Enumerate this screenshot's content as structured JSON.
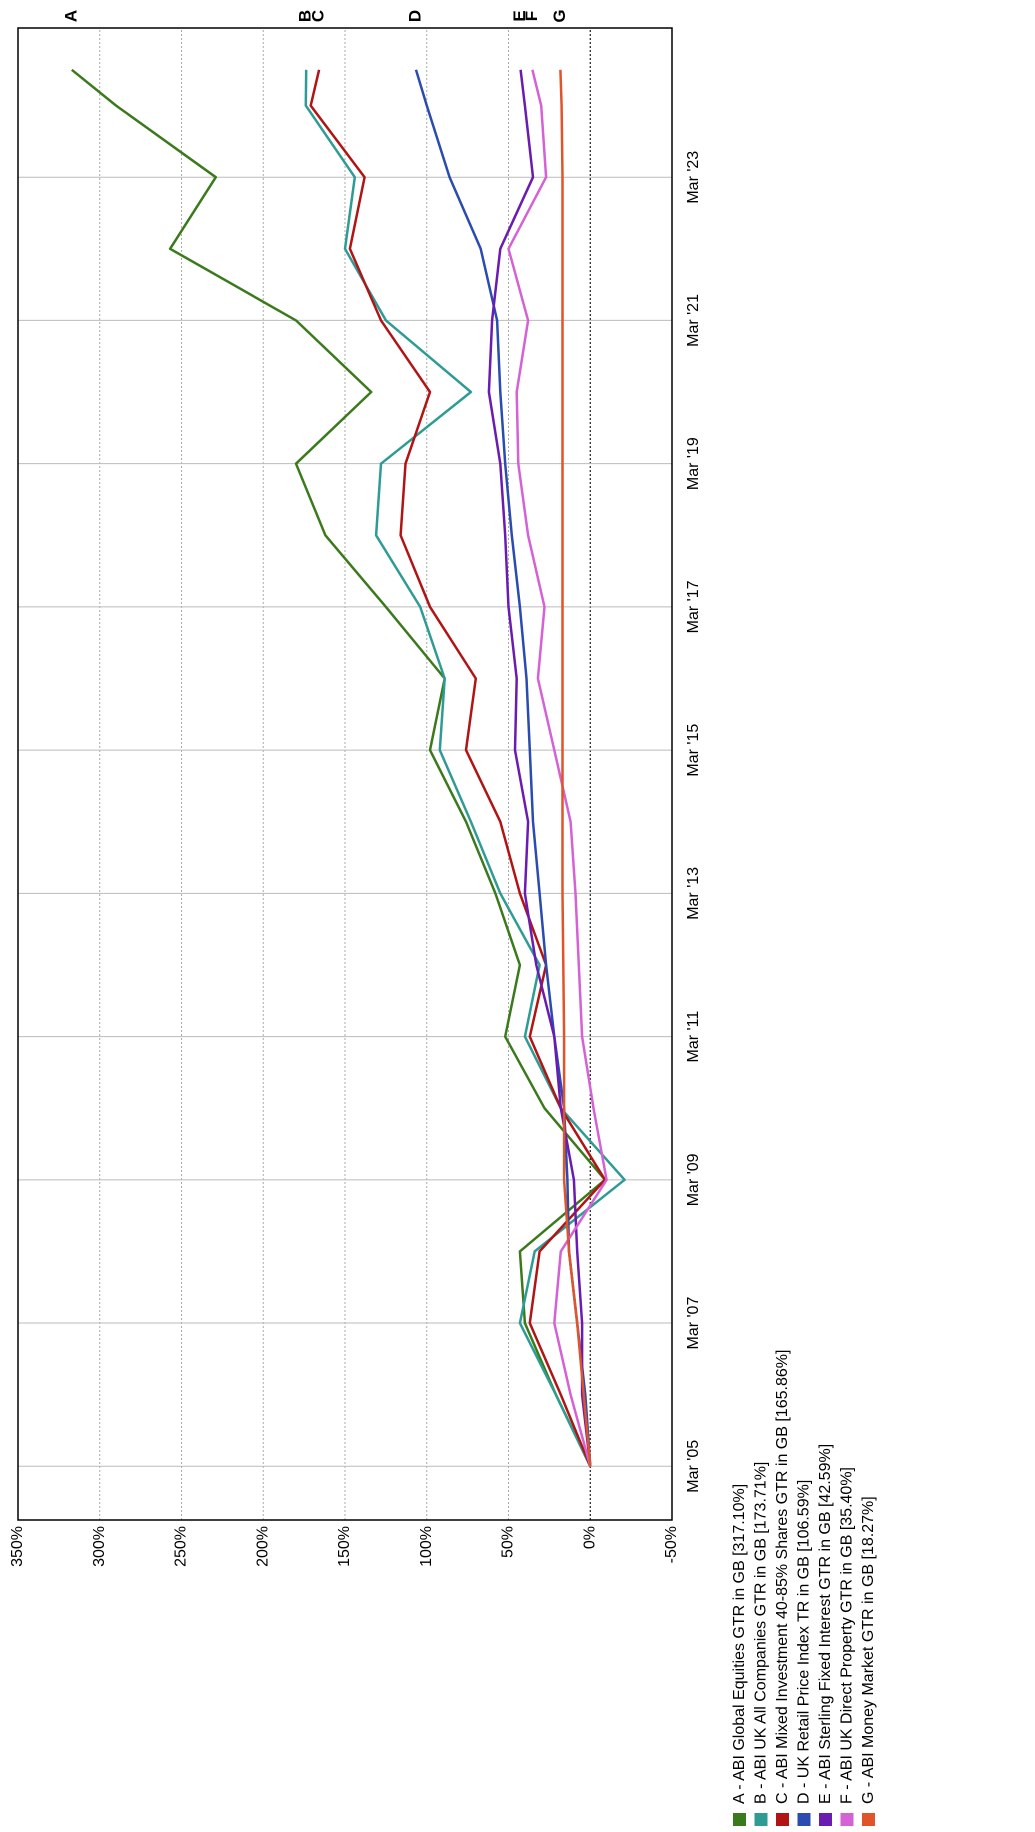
{
  "chart_data": {
    "type": "line",
    "x": [
      "2005-03",
      "2006-03",
      "2007-03",
      "2008-03",
      "2009-03",
      "2010-03",
      "2011-03",
      "2012-03",
      "2013-03",
      "2014-03",
      "2015-03",
      "2016-03",
      "2017-03",
      "2018-03",
      "2019-03",
      "2020-03",
      "2021-03",
      "2022-03",
      "2023-03",
      "2024-03",
      "2024-09"
    ],
    "series": [
      {
        "name": "A - ABI Global Equities GTR in GB [317.10%]",
        "label": "A",
        "color": "#3b7a1c",
        "values": [
          0,
          21,
          40,
          43,
          -9,
          28,
          52,
          43,
          58,
          76,
          98,
          89,
          125,
          162,
          180,
          134,
          180,
          257,
          229,
          290,
          317.1
        ]
      },
      {
        "name": "B - ABI UK All Companies GTR in GB [173.71%]",
        "label": "B",
        "color": "#2e9c94",
        "values": [
          0,
          21,
          43,
          34,
          -21,
          18,
          40,
          31,
          55,
          73,
          92,
          89,
          104,
          131,
          128,
          73,
          125,
          150,
          144,
          174,
          173.71
        ]
      },
      {
        "name": "C - ABI Mixed Investment 40-85% Shares GTR in GB [165.86%]",
        "label": "C",
        "color": "#b01414",
        "values": [
          0,
          18,
          37,
          31,
          -9,
          18,
          37,
          27,
          43,
          55,
          76,
          70,
          98,
          116,
          113,
          98,
          128,
          147,
          138,
          171,
          165.86
        ]
      },
      {
        "name": "D - UK Retail Price Index TR in GB [106.59%]",
        "label": "D",
        "color": "#2a4bb0",
        "values": [
          0,
          3,
          8,
          13,
          14,
          16,
          22,
          27,
          31,
          35,
          37,
          39,
          43,
          48,
          52,
          55,
          57,
          67,
          86,
          100,
          106.59
        ]
      },
      {
        "name": "E - ABI Sterling Fixed Interest GTR in GB [42.59%]",
        "label": "E",
        "color": "#6a1cb0",
        "values": [
          0,
          5,
          5,
          8,
          10,
          18,
          22,
          33,
          40,
          38,
          46,
          45,
          50,
          52,
          55,
          62,
          60,
          55,
          35,
          40,
          42.59
        ]
      },
      {
        "name": "F - ABI UK Direct Property GTR in GB [35.40%]",
        "label": "F",
        "color": "#d462d4",
        "values": [
          0,
          12,
          22,
          18,
          -10,
          -2,
          5,
          7,
          9,
          12,
          22,
          32,
          28,
          38,
          44,
          45,
          38,
          50,
          27,
          30,
          35.4
        ]
      },
      {
        "name": "G - ABI Money Market GTR in GB [18.27%]",
        "label": "G",
        "color": "#e0542a",
        "values": [
          0,
          4,
          8,
          13,
          16,
          16,
          16,
          16.5,
          17,
          17,
          17,
          17,
          17,
          17,
          17,
          17,
          17,
          17,
          17,
          17.5,
          18.27
        ]
      }
    ],
    "xlim": [
      "2004-06",
      "2025-04"
    ],
    "xticks": [
      {
        "value": "2005-03",
        "label": "Mar '05"
      },
      {
        "value": "2007-03",
        "label": "Mar '07"
      },
      {
        "value": "2009-03",
        "label": "Mar '09"
      },
      {
        "value": "2011-03",
        "label": "Mar '11"
      },
      {
        "value": "2013-03",
        "label": "Mar '13"
      },
      {
        "value": "2015-03",
        "label": "Mar '15"
      },
      {
        "value": "2017-03",
        "label": "Mar '17"
      },
      {
        "value": "2019-03",
        "label": "Mar '19"
      },
      {
        "value": "2021-03",
        "label": "Mar '21"
      },
      {
        "value": "2023-03",
        "label": "Mar '23"
      }
    ],
    "ylim": [
      -50,
      350
    ],
    "yticks": [
      {
        "value": -50,
        "label": "-50%"
      },
      {
        "value": 0,
        "label": "0%"
      },
      {
        "value": 50,
        "label": "50%"
      },
      {
        "value": 100,
        "label": "100%"
      },
      {
        "value": 150,
        "label": "150%"
      },
      {
        "value": 200,
        "label": "200%"
      },
      {
        "value": 250,
        "label": "250%"
      },
      {
        "value": 300,
        "label": "300%"
      },
      {
        "value": 350,
        "label": "350%"
      }
    ],
    "grid": true
  }
}
